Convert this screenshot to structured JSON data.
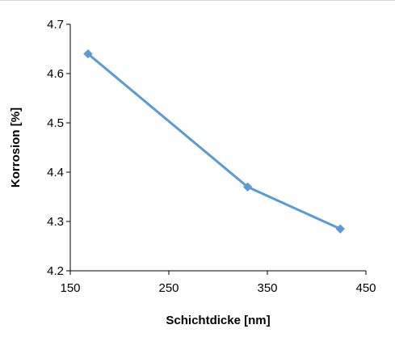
{
  "chart_data": {
    "type": "line",
    "title": "",
    "xlabel": "Schichtdicke [nm]",
    "ylabel": "Korrosion [%]",
    "xlim": [
      150,
      450
    ],
    "ylim": [
      4.2,
      4.7
    ],
    "xticks": [
      150,
      250,
      350,
      450
    ],
    "yticks": [
      4.2,
      4.3,
      4.4,
      4.5,
      4.6,
      4.7
    ],
    "xtick_labels": [
      "150",
      "250",
      "350",
      "450"
    ],
    "ytick_labels": [
      "4.2",
      "4.3",
      "4.4",
      "4.5",
      "4.6",
      "4.7"
    ],
    "grid": false,
    "legend": "none",
    "series": [
      {
        "color": "#5b9bd5",
        "marker": "diamond",
        "x": [
          168,
          330,
          424
        ],
        "y": [
          4.64,
          4.37,
          4.285
        ]
      }
    ]
  }
}
